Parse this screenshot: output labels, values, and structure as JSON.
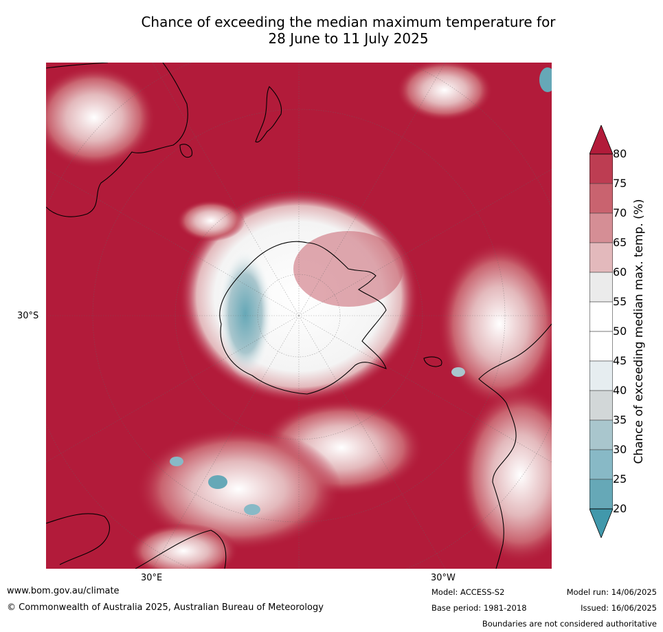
{
  "title": {
    "line1": "Chance of exceeding the median maximum temperature for",
    "line2": "28 June to 11 July 2025"
  },
  "map": {
    "axis_labels": {
      "left": "30°S",
      "bottom_left": "30°E",
      "bottom_right": "30°W"
    },
    "colors": {
      "background_high": "#b21b3a",
      "land_outline": "#000000"
    }
  },
  "colorbar": {
    "title": "Chance of exceeding median max. temp. (%)",
    "ticks": [
      "80",
      "75",
      "70",
      "65",
      "60",
      "55",
      "50",
      "45",
      "40",
      "35",
      "30",
      "25",
      "20"
    ],
    "bins": [
      {
        "range": "above 80",
        "color": "#b21b3a"
      },
      {
        "range": "75-80",
        "color": "#bd3d52"
      },
      {
        "range": "70-75",
        "color": "#c9636f"
      },
      {
        "range": "65-70",
        "color": "#d58e95"
      },
      {
        "range": "60-65",
        "color": "#e3b9bc"
      },
      {
        "range": "55-60",
        "color": "#ebebeb"
      },
      {
        "range": "50-55",
        "color": "#ffffff"
      },
      {
        "range": "45-50",
        "color": "#ffffff"
      },
      {
        "range": "40-45",
        "color": "#e6edf0"
      },
      {
        "range": "35-40",
        "color": "#d2d7d8"
      },
      {
        "range": "30-35",
        "color": "#a9c6cd"
      },
      {
        "range": "25-30",
        "color": "#88b9c6"
      },
      {
        "range": "20-25",
        "color": "#66a8b7"
      },
      {
        "range": "below 20",
        "color": "#4198ab"
      }
    ]
  },
  "footer": {
    "website": "www.bom.gov.au/climate",
    "copyright": "© Commonwealth of Australia 2025, Australian Bureau of Meteorology",
    "model": "Model: ACCESS-S2",
    "base_period": "Base period: 1981-2018",
    "model_run": "Model run: 14/06/2025",
    "issued": "Issued: 16/06/2025",
    "disclaimer": "Boundaries are not considered authoritative"
  }
}
